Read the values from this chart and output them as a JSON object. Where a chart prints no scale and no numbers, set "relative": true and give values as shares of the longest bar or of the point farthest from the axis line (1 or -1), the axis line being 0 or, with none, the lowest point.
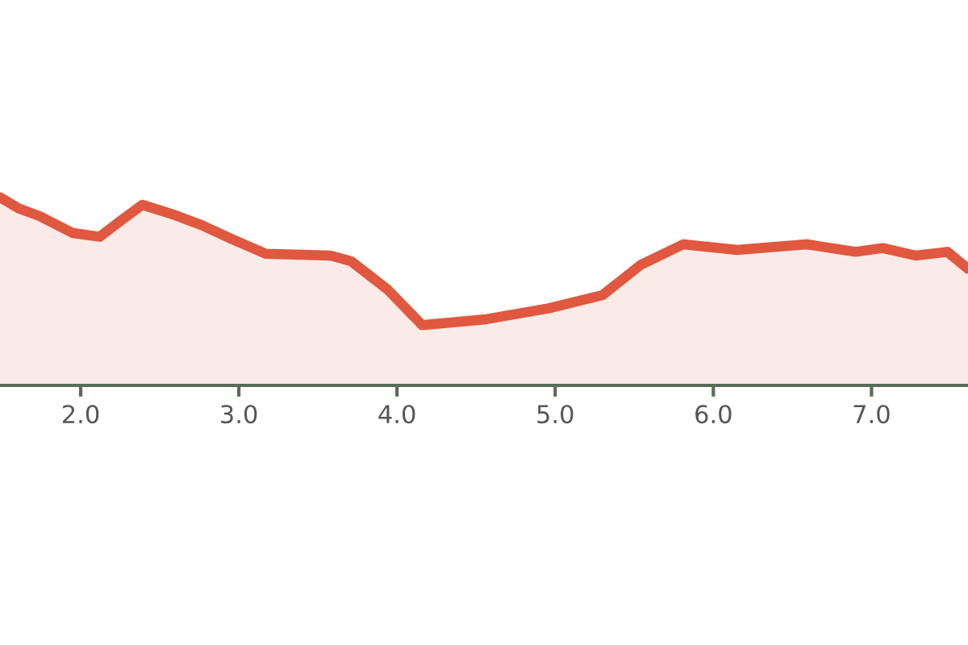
{
  "chart_data": {
    "type": "area",
    "relative": true,
    "color": "#e0583f",
    "x": [
      1.49,
      1.61,
      1.74,
      1.95,
      2.12,
      2.26,
      2.39,
      2.58,
      2.77,
      2.95,
      3.17,
      3.58,
      3.71,
      3.94,
      4.16,
      4.55,
      4.96,
      5.3,
      5.54,
      5.81,
      6.15,
      6.59,
      6.9,
      7.07,
      7.28,
      7.48,
      7.61
    ],
    "values": [
      1.0,
      0.94,
      0.9,
      0.81,
      0.79,
      0.88,
      0.96,
      0.91,
      0.85,
      0.78,
      0.7,
      0.69,
      0.66,
      0.51,
      0.32,
      0.35,
      0.41,
      0.48,
      0.64,
      0.75,
      0.72,
      0.75,
      0.71,
      0.73,
      0.69,
      0.71,
      0.62
    ],
    "xlim": [
      1.49,
      7.61
    ],
    "xticks": [
      {
        "value": 2,
        "label": "2.0"
      },
      {
        "value": 3,
        "label": "3.0"
      },
      {
        "value": 4,
        "label": "4.0"
      },
      {
        "value": 5,
        "label": "5.0"
      },
      {
        "value": 6,
        "label": "6.0"
      },
      {
        "value": 7,
        "label": "7.0"
      }
    ],
    "tick_labels": "x",
    "grid": false
  }
}
